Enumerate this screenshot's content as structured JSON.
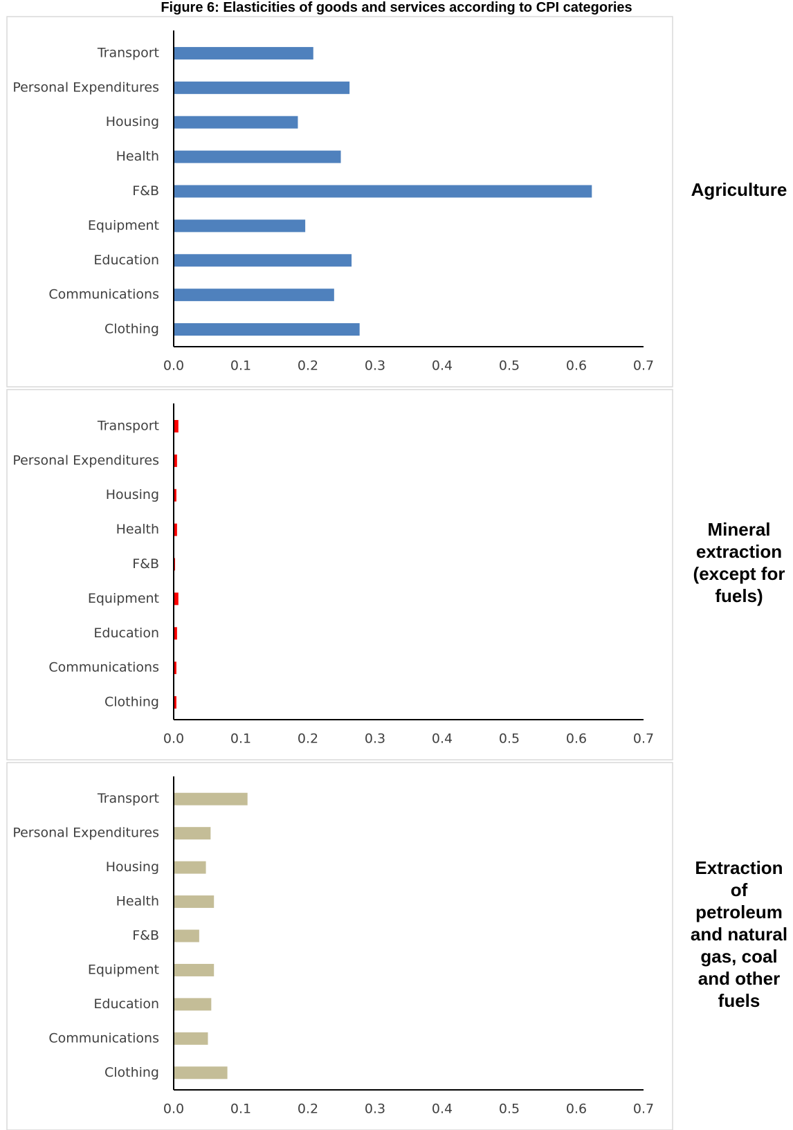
{
  "title": "Figure 6: Elasticities of goods and services according to CPI categories",
  "chart_data": [
    {
      "type": "bar",
      "orientation": "horizontal",
      "title": "Agriculture",
      "color": "#4f81bd",
      "categories": [
        "Transport",
        "Personal Expenditures",
        "Housing",
        "Health",
        "F&B",
        "Equipment",
        "Education",
        "Communications",
        "Clothing"
      ],
      "values": [
        0.208,
        0.262,
        0.185,
        0.249,
        0.623,
        0.196,
        0.265,
        0.239,
        0.277
      ],
      "xlim": [
        0,
        0.7
      ],
      "xticks": [
        {
          "value": 0,
          "label": "0.0"
        },
        0.1,
        0.2,
        0.3,
        0.4,
        0.5,
        0.6,
        0.7
      ]
    },
    {
      "type": "bar",
      "orientation": "horizontal",
      "title": "Mineral extraction (except for fuels)",
      "color": "#ff0000",
      "categories": [
        "Transport",
        "Personal Expenditures",
        "Housing",
        "Health",
        "F&B",
        "Equipment",
        "Education",
        "Communications",
        "Clothing"
      ],
      "values": [
        0.007,
        0.005,
        0.004,
        0.005,
        0.002,
        0.007,
        0.005,
        0.004,
        0.004
      ],
      "xlim": [
        0,
        0.7
      ],
      "xticks": [
        {
          "value": 0,
          "label": "0.0"
        },
        0.1,
        0.2,
        0.3,
        0.4,
        0.5,
        0.6,
        0.7
      ]
    },
    {
      "type": "bar",
      "orientation": "horizontal",
      "title": "Extraction of petroleum and natural gas, coal and other fuels",
      "color": "#c4bd97",
      "categories": [
        "Transport",
        "Personal Expenditures",
        "Housing",
        "Health",
        "F&B",
        "Equipment",
        "Education",
        "Communications",
        "Clothing"
      ],
      "values": [
        0.11,
        0.055,
        0.048,
        0.06,
        0.038,
        0.06,
        0.056,
        0.051,
        0.08
      ],
      "xlim": [
        0,
        0.7
      ],
      "xticks": [
        {
          "value": 0,
          "label": "0.0"
        },
        0.1,
        0.2,
        0.3,
        0.4,
        0.5,
        0.6,
        0.7
      ]
    }
  ]
}
